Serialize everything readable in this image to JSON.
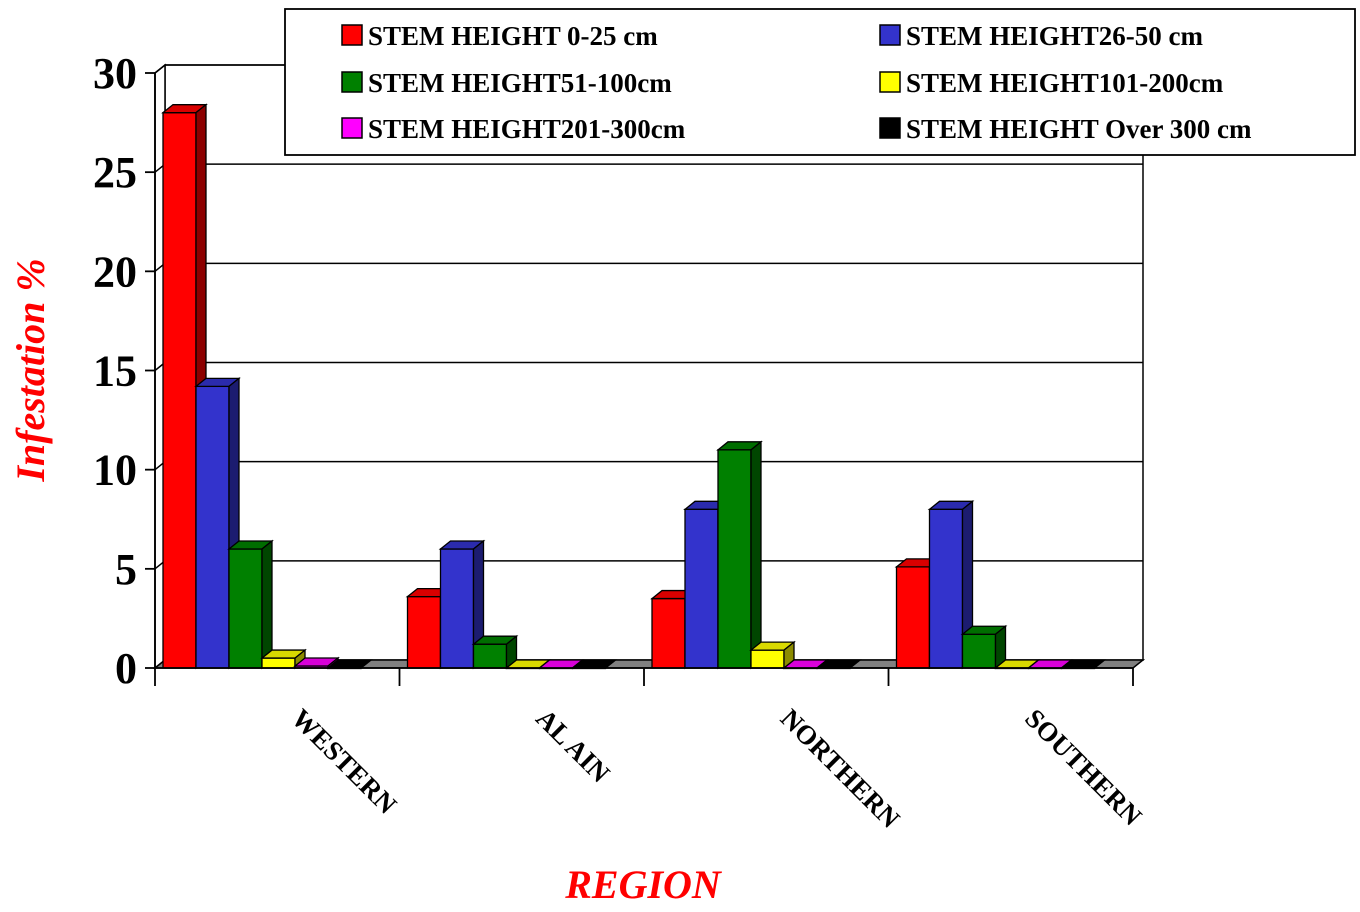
{
  "chart_data": {
    "type": "bar",
    "title": "",
    "xlabel": "REGION",
    "ylabel": "Infestation %",
    "ylim": [
      0,
      30
    ],
    "yticks": [
      0,
      5,
      10,
      15,
      20,
      25,
      30
    ],
    "grid": true,
    "legend_position": "top-right",
    "categories": [
      "WESTERN",
      "AL AIN",
      "NORTHERN",
      "SOUTHERN"
    ],
    "series": [
      {
        "name": "STEM HEIGHT 0-25 cm",
        "color": "#ff0000",
        "values": [
          28,
          3.6,
          3.5,
          5.1
        ]
      },
      {
        "name": "STEM HEIGHT26-50 cm",
        "color": "#3333cc",
        "values": [
          14.2,
          6,
          8,
          8
        ]
      },
      {
        "name": "STEM HEIGHT51-100cm",
        "color": "#008000",
        "values": [
          6,
          1.2,
          11,
          1.7
        ]
      },
      {
        "name": "STEM HEIGHT101-200cm",
        "color": "#ffff00",
        "values": [
          0.5,
          0,
          0.9,
          0
        ]
      },
      {
        "name": "STEM HEIGHT201-300cm",
        "color": "#ff00ff",
        "values": [
          0.1,
          0,
          0,
          0
        ]
      },
      {
        "name": "STEM HEIGHT Over 300 cm",
        "color": "#000000",
        "values": [
          0,
          0,
          0,
          0
        ]
      }
    ]
  }
}
